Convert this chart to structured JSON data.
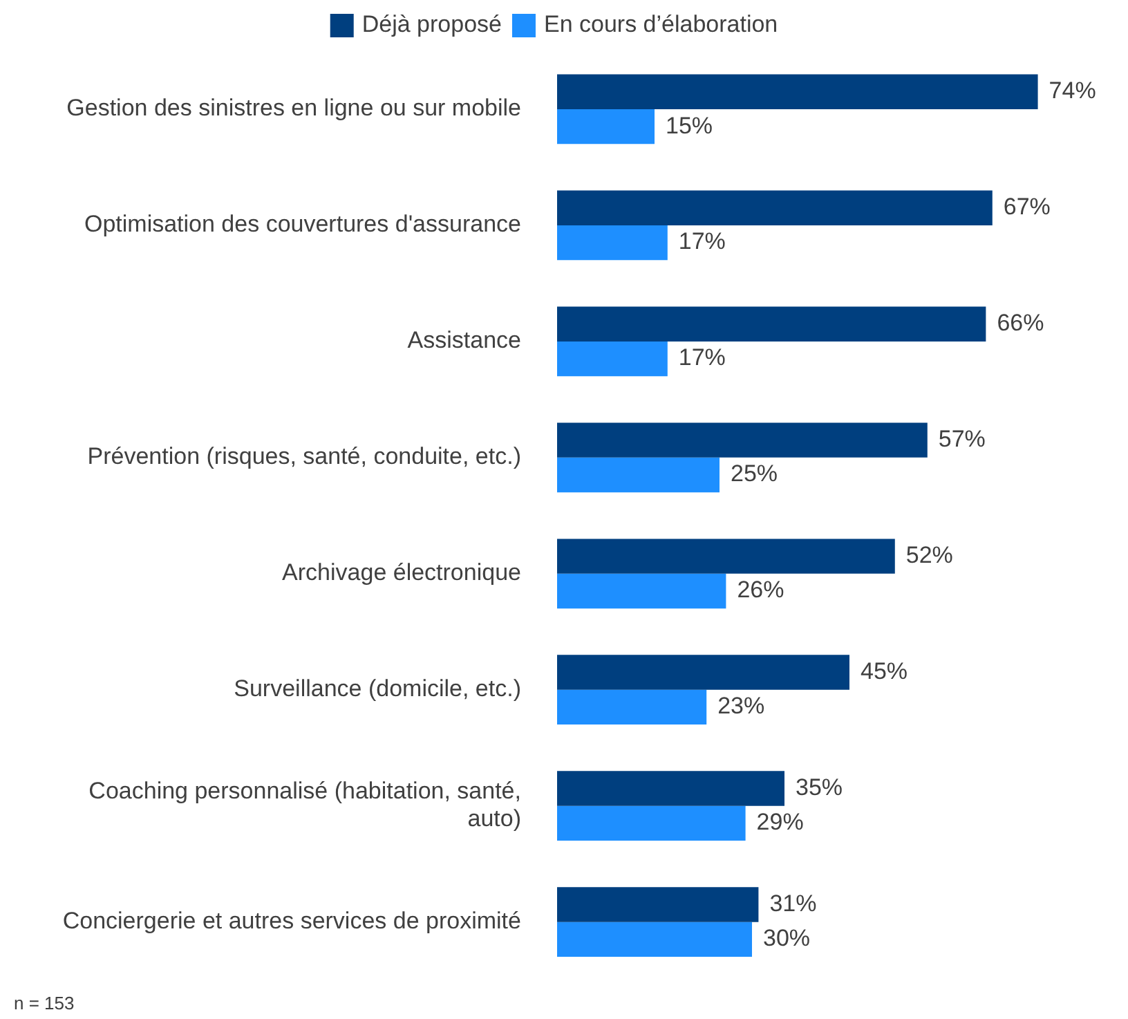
{
  "chart_data": {
    "type": "bar",
    "orientation": "horizontal",
    "legend": "top",
    "categories": [
      "Gestion des sinistres en ligne ou sur mobile",
      "Optimisation des couvertures d'assurance",
      "Assistance",
      "Prévention (risques, santé, conduite, etc.)",
      "Archivage électronique",
      "Surveillance (domicile, etc.)",
      "Coaching personnalisé (habitation, santé, auto)",
      "Conciergerie et autres services de proximité"
    ],
    "series": [
      {
        "name": "Déjà proposé",
        "color": "#003f7f",
        "values": [
          74,
          67,
          66,
          57,
          52,
          45,
          35,
          31
        ],
        "value_labels": [
          "74%",
          "67%",
          "66%",
          "57%",
          "52%",
          "45%",
          "35%",
          "31%"
        ]
      },
      {
        "name": "En cours d’élaboration",
        "color": "#1e8fff",
        "values": [
          15,
          17,
          17,
          25,
          26,
          23,
          29,
          30
        ],
        "value_labels": [
          "15%",
          "17%",
          "17%",
          "25%",
          "26%",
          "23%",
          "29%",
          "30%"
        ]
      }
    ],
    "annotations": [
      "n = 153"
    ]
  }
}
